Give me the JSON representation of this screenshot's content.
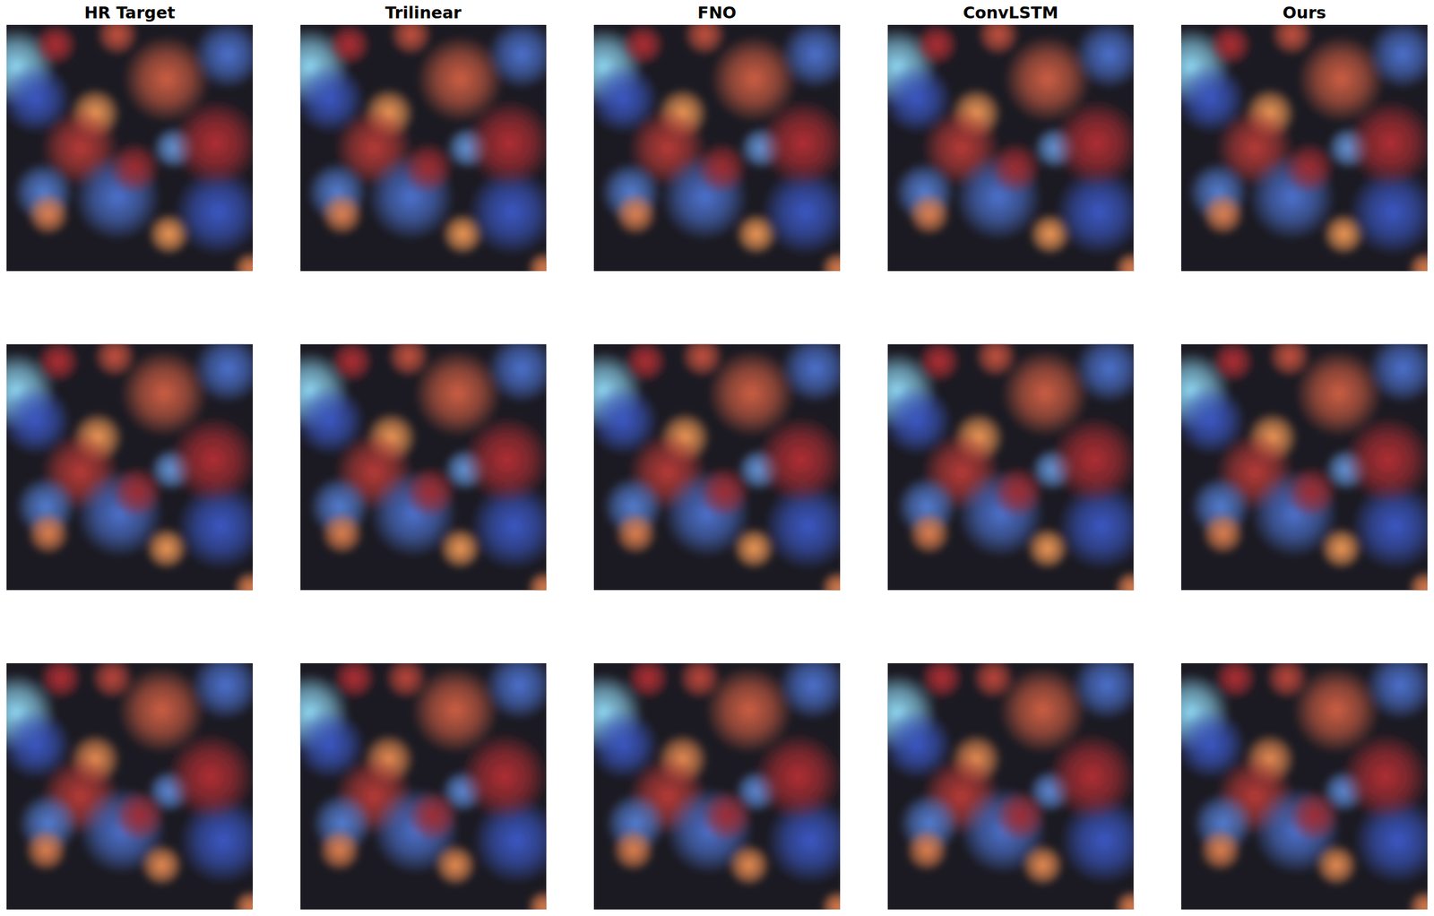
{
  "chart_data": {
    "type": "heatmap-grid",
    "columns": [
      "HR Target",
      "Trilinear",
      "FNO",
      "ConvLSTM",
      "Ours"
    ],
    "clim": [
      -1,
      1
    ],
    "rows": [
      {
        "vortices": [
          [
            0.04,
            0.17,
            -1.0,
            0.09
          ],
          [
            0.36,
            0.36,
            0.95,
            0.06
          ],
          [
            0.65,
            0.22,
            0.7,
            0.1
          ],
          [
            0.45,
            0.04,
            0.65,
            0.05
          ],
          [
            0.68,
            0.5,
            -0.75,
            0.05
          ],
          [
            0.3,
            0.5,
            0.55,
            0.09
          ],
          [
            0.15,
            0.68,
            -0.65,
            0.07
          ],
          [
            0.17,
            0.77,
            0.85,
            0.05
          ],
          [
            0.45,
            0.7,
            -0.6,
            0.1
          ],
          [
            0.66,
            0.85,
            0.95,
            0.05
          ],
          [
            0.86,
            0.76,
            -0.5,
            0.1
          ],
          [
            0.85,
            0.48,
            0.5,
            0.1
          ],
          [
            0.9,
            0.12,
            -0.6,
            0.08
          ],
          [
            0.12,
            0.3,
            -0.5,
            0.08
          ],
          [
            0.99,
            0.99,
            0.85,
            0.04
          ],
          [
            0.52,
            0.58,
            0.45,
            0.06
          ],
          [
            0.2,
            0.08,
            0.5,
            0.05
          ]
        ]
      },
      {
        "vortices": [
          [
            0.04,
            0.19,
            -1.0,
            0.09
          ],
          [
            0.37,
            0.38,
            0.95,
            0.06
          ],
          [
            0.64,
            0.2,
            0.7,
            0.1
          ],
          [
            0.44,
            0.05,
            0.65,
            0.05
          ],
          [
            0.67,
            0.51,
            -0.75,
            0.05
          ],
          [
            0.3,
            0.52,
            0.55,
            0.09
          ],
          [
            0.16,
            0.66,
            -0.65,
            0.07
          ],
          [
            0.17,
            0.77,
            0.85,
            0.05
          ],
          [
            0.46,
            0.69,
            -0.6,
            0.1
          ],
          [
            0.65,
            0.83,
            0.95,
            0.05
          ],
          [
            0.87,
            0.74,
            -0.5,
            0.1
          ],
          [
            0.84,
            0.47,
            0.5,
            0.1
          ],
          [
            0.9,
            0.1,
            -0.6,
            0.08
          ],
          [
            0.12,
            0.31,
            -0.5,
            0.08
          ],
          [
            0.99,
            0.99,
            0.85,
            0.04
          ],
          [
            0.53,
            0.6,
            0.45,
            0.06
          ],
          [
            0.21,
            0.07,
            0.5,
            0.05
          ]
        ]
      },
      {
        "vortices": [
          [
            0.04,
            0.2,
            -1.0,
            0.09
          ],
          [
            0.36,
            0.39,
            0.9,
            0.06
          ],
          [
            0.63,
            0.19,
            0.7,
            0.1
          ],
          [
            0.43,
            0.06,
            0.6,
            0.05
          ],
          [
            0.66,
            0.52,
            -0.7,
            0.05
          ],
          [
            0.3,
            0.54,
            0.55,
            0.09
          ],
          [
            0.17,
            0.65,
            -0.65,
            0.07
          ],
          [
            0.16,
            0.76,
            0.85,
            0.05
          ],
          [
            0.47,
            0.68,
            -0.6,
            0.1
          ],
          [
            0.63,
            0.82,
            0.9,
            0.05
          ],
          [
            0.88,
            0.72,
            -0.5,
            0.1
          ],
          [
            0.83,
            0.46,
            0.5,
            0.1
          ],
          [
            0.89,
            0.09,
            -0.6,
            0.08
          ],
          [
            0.12,
            0.33,
            -0.5,
            0.08
          ],
          [
            0.99,
            0.99,
            0.85,
            0.04
          ],
          [
            0.54,
            0.62,
            0.45,
            0.06
          ],
          [
            0.22,
            0.06,
            0.5,
            0.05
          ]
        ]
      }
    ]
  }
}
